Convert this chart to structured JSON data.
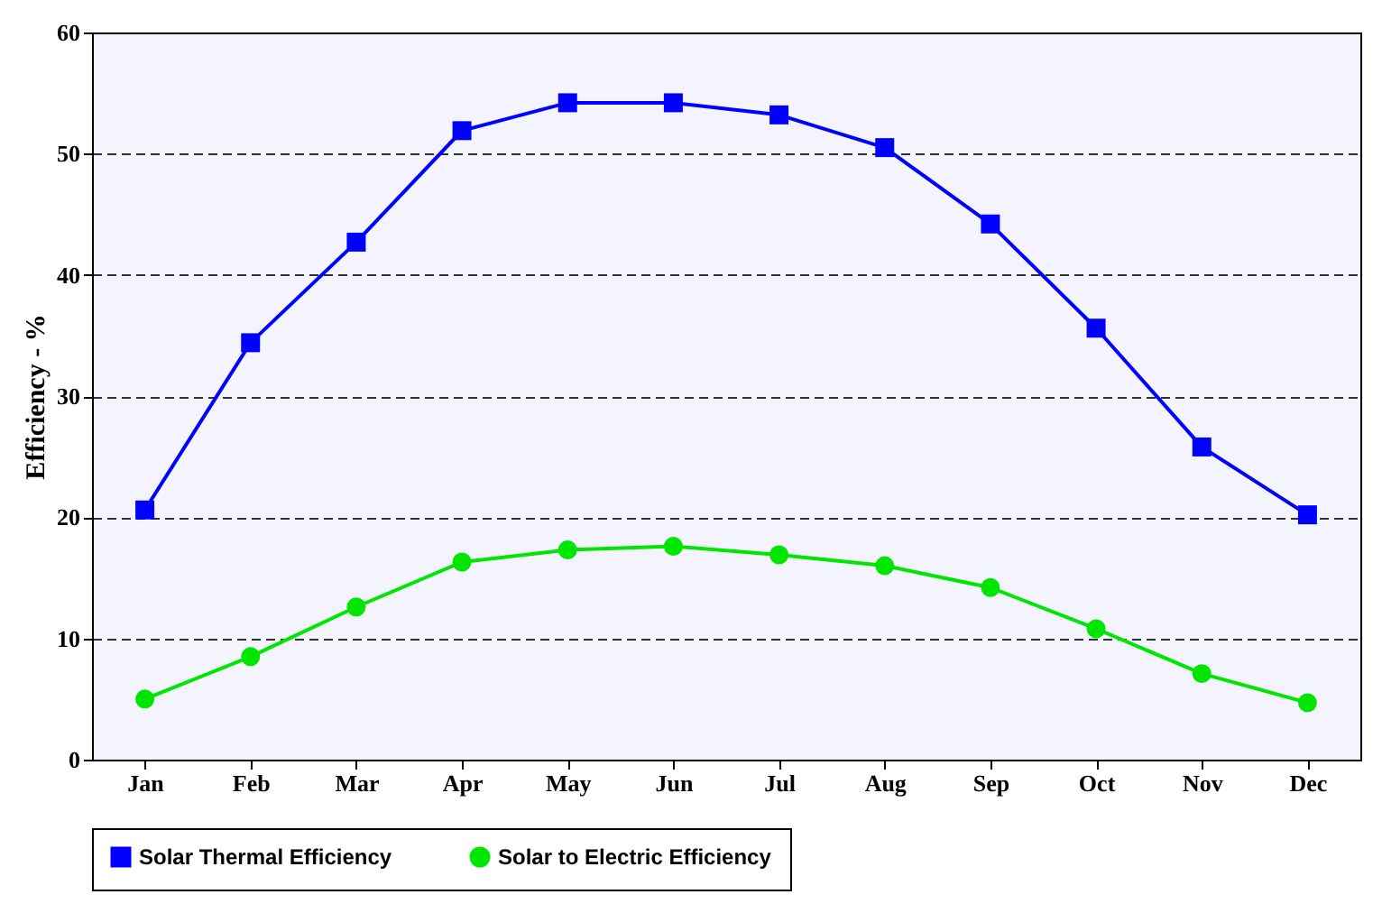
{
  "chart_data": {
    "type": "line",
    "ylabel": "Efficiency - %",
    "categories": [
      "Jan",
      "Feb",
      "Mar",
      "Apr",
      "May",
      "Jun",
      "Jul",
      "Aug",
      "Sep",
      "Oct",
      "Nov",
      "Dec"
    ],
    "series": [
      {
        "name": "Solar Thermal Efficiency",
        "color": "#0000ff",
        "marker": "square",
        "values": [
          20.6,
          34.4,
          42.7,
          51.9,
          54.2,
          54.2,
          53.2,
          50.5,
          44.2,
          35.6,
          25.8,
          20.2
        ]
      },
      {
        "name": "Solar to Electric Efficiency",
        "color": "#00e600",
        "marker": "circle",
        "values": [
          5.0,
          8.5,
          12.6,
          16.3,
          17.3,
          17.6,
          16.9,
          16.0,
          14.2,
          10.8,
          7.1,
          4.7
        ]
      }
    ],
    "ylim": [
      0,
      60
    ],
    "yticks": [
      0,
      10,
      20,
      30,
      40,
      50,
      60
    ],
    "grid": "y",
    "legend": "bottom",
    "line_style": "solid"
  }
}
